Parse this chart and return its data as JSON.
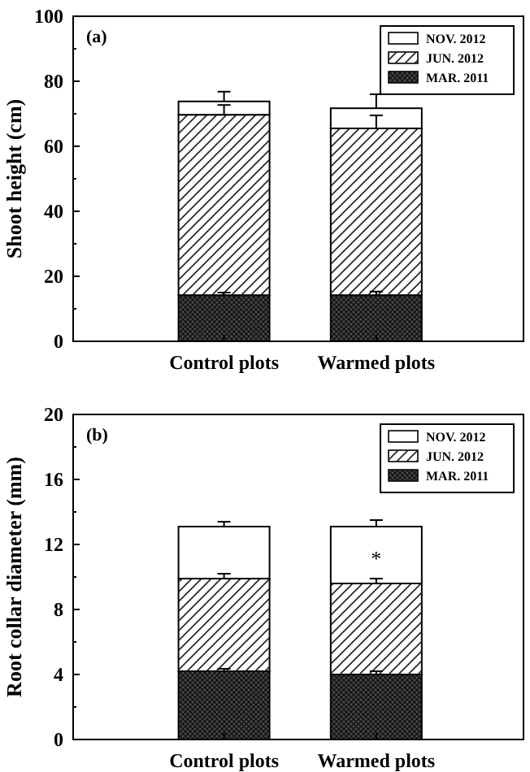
{
  "chart_data": [
    {
      "type": "bar",
      "title": "(a)",
      "ylabel": "Shoot height (cm)",
      "categories": [
        "Control plots",
        "Warmed plots"
      ],
      "stacked": true,
      "legend": "top right",
      "ylim": [
        0,
        100
      ],
      "yticks": [
        0,
        {
          "value": 10,
          "label": null
        },
        20,
        {
          "value": 30,
          "label": null
        },
        40,
        {
          "value": 50,
          "label": null
        },
        60,
        {
          "value": 70,
          "label": null
        },
        80,
        {
          "value": 90,
          "label": null
        },
        100
      ],
      "series": [
        {
          "name": "MAR. 2011",
          "color": "#4a4a4a",
          "values": [
            14.2,
            14.2
          ],
          "errors": [
            [
              14.2,
              15
            ],
            [
              14.2,
              15.3
            ]
          ]
        },
        {
          "name": "JUN. 2012",
          "color": "#ffffff",
          "values": [
            55.5,
            51.3
          ],
          "errors": [
            [
              69.7,
              72.7
            ],
            [
              65.5,
              69.5
            ]
          ]
        },
        {
          "name": "NOV. 2012",
          "color": "#ffffff",
          "values": [
            4.1,
            6.2
          ],
          "errors": [
            [
              73.8,
              76.8
            ],
            [
              71.7,
              76
            ]
          ]
        }
      ]
    },
    {
      "type": "bar",
      "title": "(b)",
      "ylabel": "Root collar diameter (mm)",
      "categories": [
        "Control plots",
        "Warmed plots"
      ],
      "stacked": true,
      "legend": "top right",
      "ylim": [
        0,
        20
      ],
      "yticks": [
        0,
        {
          "value": 2,
          "label": null
        },
        4,
        {
          "value": 6,
          "label": null
        },
        8,
        {
          "value": 10,
          "label": null
        },
        12,
        {
          "value": 14,
          "label": null
        },
        16,
        {
          "value": 18,
          "label": null
        },
        20
      ],
      "annotations": [
        "*"
      ],
      "series": [
        {
          "name": "MAR. 2011",
          "color": "#4a4a4a",
          "values": [
            4.2,
            4.0
          ],
          "errors": [
            [
              4.2,
              4.35
            ],
            [
              4.0,
              4.2
            ]
          ]
        },
        {
          "name": "JUN. 2012",
          "color": "#ffffff",
          "values": [
            5.7,
            5.6
          ],
          "errors": [
            [
              9.9,
              10.2
            ],
            [
              9.6,
              9.9
            ]
          ]
        },
        {
          "name": "NOV. 2012",
          "color": "#ffffff",
          "values": [
            3.2,
            3.5
          ],
          "errors": [
            [
              13.1,
              13.4
            ],
            [
              13.1,
              13.5
            ]
          ]
        }
      ]
    }
  ]
}
